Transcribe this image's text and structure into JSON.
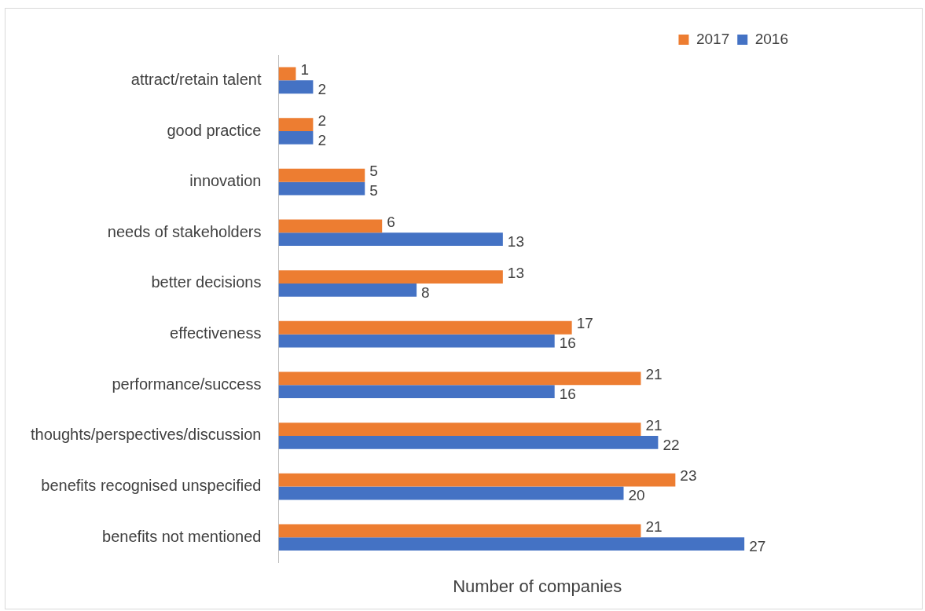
{
  "chart_data": {
    "type": "bar",
    "orientation": "horizontal",
    "xlabel": "Number of companies",
    "categories": [
      "attract/retain talent",
      "good practice",
      "innovation",
      "needs of stakeholders",
      "better decisions",
      "effectiveness",
      "performance/success",
      "thoughts/perspectives/discussion",
      "benefits recognised unspecified",
      "benefits not mentioned"
    ],
    "series": [
      {
        "name": "2017",
        "color": "#ed7d31",
        "values": [
          1,
          2,
          5,
          6,
          13,
          17,
          21,
          21,
          23,
          21
        ]
      },
      {
        "name": "2016",
        "color": "#4472c4",
        "values": [
          2,
          2,
          5,
          13,
          8,
          16,
          16,
          22,
          20,
          27
        ]
      }
    ],
    "tick_labels": "y",
    "data_labels": true,
    "legend": "top right",
    "grid": false
  }
}
